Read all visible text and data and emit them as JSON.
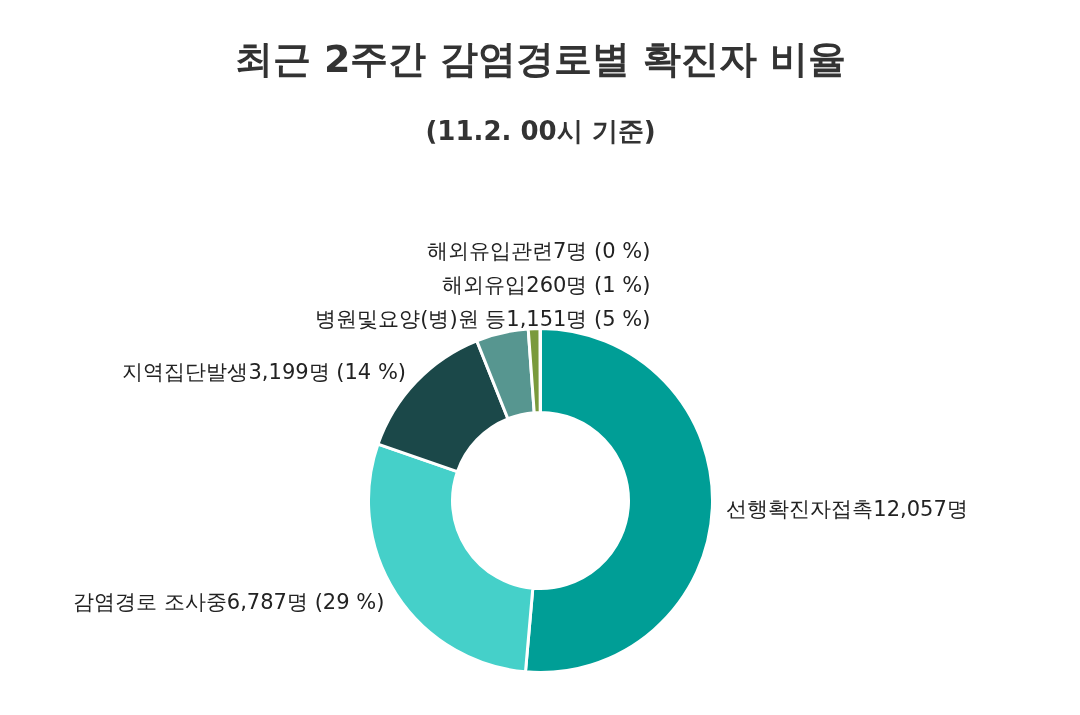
{
  "chart_data": {
    "type": "donut",
    "title": "최근 2주간 감염경로별 확진자 비율",
    "subtitle": "(11.2. 00시 기준)",
    "categories": [
      "선행확진자접촉",
      "감염경로 조사중",
      "지역집단발생",
      "병원및요양(병)원 등",
      "해외유입",
      "해외유입관련"
    ],
    "values": [
      12057,
      6787,
      3199,
      1151,
      260,
      7
    ],
    "value_labels": [
      "12,057명",
      "6,787명 (29 %)",
      "3,199명 (14 %)",
      "1,151명 (5 %)",
      "260명 (1 %)",
      "7명 (0 %)"
    ],
    "colors": [
      "#009e96",
      "#45d0c9",
      "#1b4849",
      "#579690",
      "#7a9a3c",
      "#3a6a8a"
    ]
  }
}
